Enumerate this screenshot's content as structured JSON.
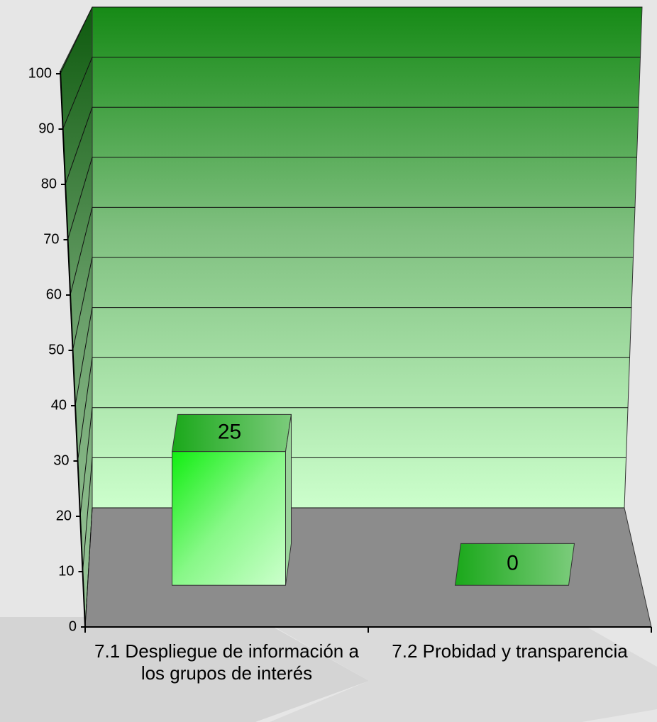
{
  "chart_data": {
    "type": "bar3d",
    "categories": [
      "7.1 Despliegue de información a los grupos de interés",
      "7.2 Probidad y transparencia"
    ],
    "values": [
      25,
      0
    ],
    "ylim": [
      0,
      100
    ],
    "yticks": [
      0,
      10,
      20,
      30,
      40,
      50,
      60,
      70,
      80,
      90,
      100
    ],
    "grid": true,
    "color": "#22ee22"
  }
}
